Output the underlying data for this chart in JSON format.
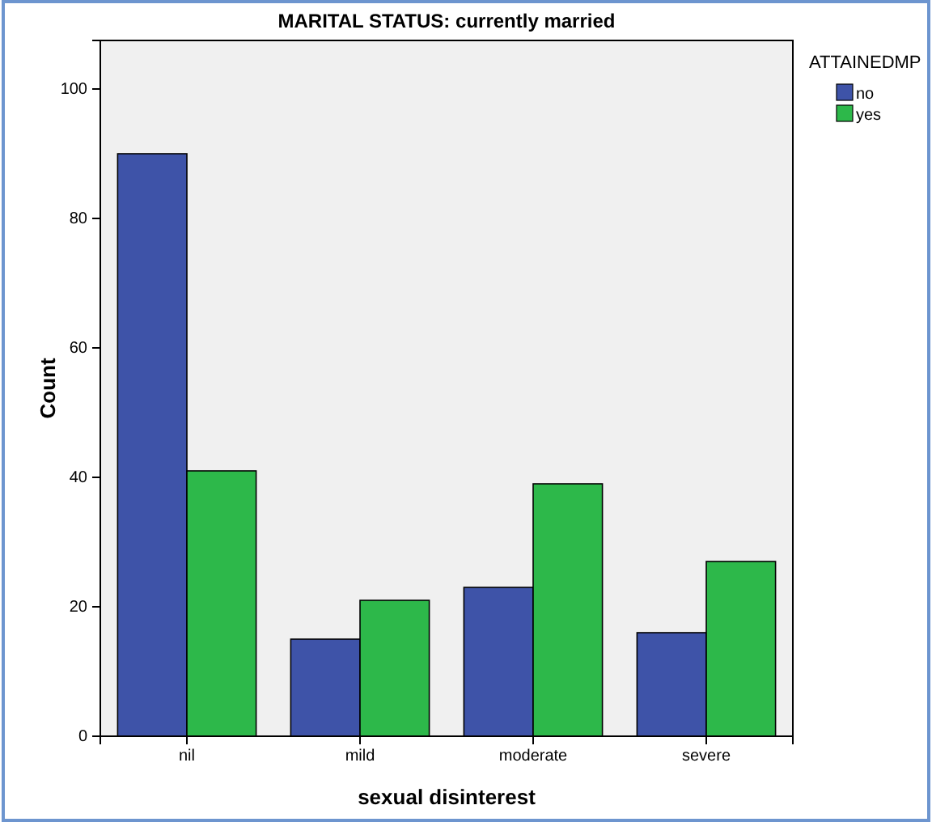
{
  "chart_data": {
    "type": "bar",
    "title": "MARITAL STATUS: currently married",
    "xlabel": "sexual disinterest",
    "ylabel": "Count",
    "legend_title": "ATTAINEDMP",
    "categories": [
      "nil",
      "mild",
      "moderate",
      "severe"
    ],
    "series": [
      {
        "name": "no",
        "color": "#3e53a8",
        "values": [
          90,
          15,
          23,
          16
        ]
      },
      {
        "name": "yes",
        "color": "#2db84a",
        "values": [
          41,
          21,
          39,
          27
        ]
      }
    ],
    "ylim": [
      0,
      107.5
    ],
    "yticks": [
      0,
      20,
      40,
      60,
      80,
      100
    ],
    "grid": false,
    "legend": "right"
  }
}
